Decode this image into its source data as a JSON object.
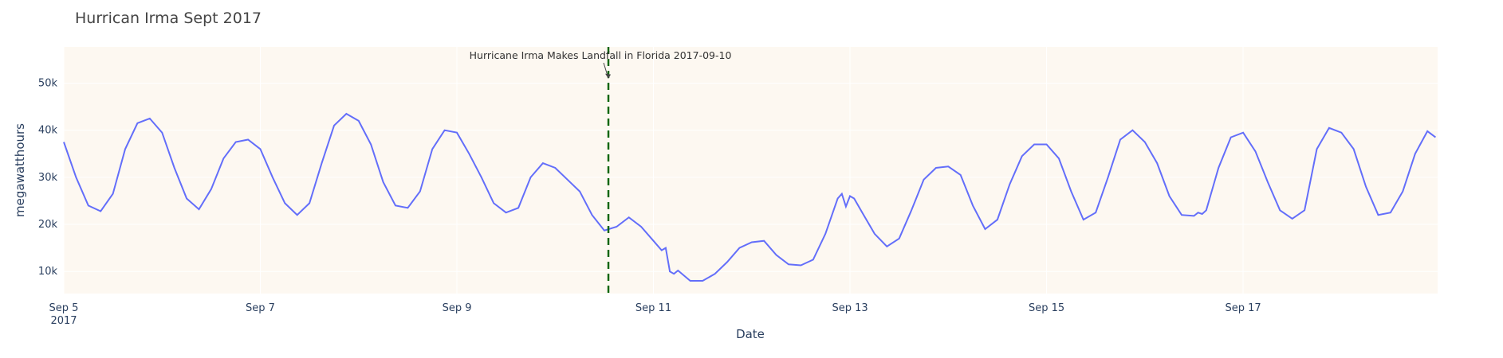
{
  "chart_data": {
    "type": "line",
    "title": "Hurrican Irma Sept 2017",
    "x_label": "Date",
    "y_label": "megawatthours",
    "color": "#636efa",
    "grid": true,
    "x": [
      "2017-09-05T00:00",
      "2017-09-05T03:00",
      "2017-09-05T06:00",
      "2017-09-05T09:00",
      "2017-09-05T12:00",
      "2017-09-05T15:00",
      "2017-09-05T18:00",
      "2017-09-05T21:00",
      "2017-09-06T00:00",
      "2017-09-06T03:00",
      "2017-09-06T06:00",
      "2017-09-06T09:00",
      "2017-09-06T12:00",
      "2017-09-06T15:00",
      "2017-09-06T18:00",
      "2017-09-06T21:00",
      "2017-09-07T00:00",
      "2017-09-07T03:00",
      "2017-09-07T06:00",
      "2017-09-07T09:00",
      "2017-09-07T12:00",
      "2017-09-07T15:00",
      "2017-09-07T18:00",
      "2017-09-07T21:00",
      "2017-09-08T00:00",
      "2017-09-08T03:00",
      "2017-09-08T06:00",
      "2017-09-08T09:00",
      "2017-09-08T12:00",
      "2017-09-08T15:00",
      "2017-09-08T18:00",
      "2017-09-08T21:00",
      "2017-09-09T00:00",
      "2017-09-09T03:00",
      "2017-09-09T06:00",
      "2017-09-09T09:00",
      "2017-09-09T12:00",
      "2017-09-09T15:00",
      "2017-09-09T18:00",
      "2017-09-09T21:00",
      "2017-09-10T00:00",
      "2017-09-10T03:00",
      "2017-09-10T06:00",
      "2017-09-10T09:00",
      "2017-09-10T12:00",
      "2017-09-10T15:00",
      "2017-09-10T18:00",
      "2017-09-10T21:00",
      "2017-09-11T00:00",
      "2017-09-11T02:00",
      "2017-09-11T03:00",
      "2017-09-11T04:00",
      "2017-09-11T05:00",
      "2017-09-11T06:00",
      "2017-09-11T09:00",
      "2017-09-11T12:00",
      "2017-09-11T15:00",
      "2017-09-11T18:00",
      "2017-09-11T21:00",
      "2017-09-12T00:00",
      "2017-09-12T03:00",
      "2017-09-12T06:00",
      "2017-09-12T09:00",
      "2017-09-12T12:00",
      "2017-09-12T15:00",
      "2017-09-12T18:00",
      "2017-09-12T21:00",
      "2017-09-12T22:00",
      "2017-09-12T23:00",
      "2017-09-13T00:00",
      "2017-09-13T01:00",
      "2017-09-13T03:00",
      "2017-09-13T06:00",
      "2017-09-13T09:00",
      "2017-09-13T12:00",
      "2017-09-13T15:00",
      "2017-09-13T18:00",
      "2017-09-13T21:00",
      "2017-09-14T00:00",
      "2017-09-14T03:00",
      "2017-09-14T06:00",
      "2017-09-14T09:00",
      "2017-09-14T12:00",
      "2017-09-14T15:00",
      "2017-09-14T18:00",
      "2017-09-14T21:00",
      "2017-09-15T00:00",
      "2017-09-15T03:00",
      "2017-09-15T06:00",
      "2017-09-15T09:00",
      "2017-09-15T12:00",
      "2017-09-15T15:00",
      "2017-09-15T18:00",
      "2017-09-15T21:00",
      "2017-09-16T00:00",
      "2017-09-16T03:00",
      "2017-09-16T06:00",
      "2017-09-16T09:00",
      "2017-09-16T12:00",
      "2017-09-16T13:00",
      "2017-09-16T14:00",
      "2017-09-16T15:00",
      "2017-09-16T18:00",
      "2017-09-16T21:00",
      "2017-09-17T00:00",
      "2017-09-17T03:00",
      "2017-09-17T06:00",
      "2017-09-17T09:00",
      "2017-09-17T12:00",
      "2017-09-17T15:00",
      "2017-09-17T18:00",
      "2017-09-17T21:00",
      "2017-09-18T00:00",
      "2017-09-18T03:00",
      "2017-09-18T06:00",
      "2017-09-18T09:00",
      "2017-09-18T12:00",
      "2017-09-18T15:00",
      "2017-09-18T18:00",
      "2017-09-18T21:00",
      "2017-09-18T23:00"
    ],
    "values": [
      37500,
      30000,
      24000,
      22800,
      26500,
      36000,
      41500,
      42500,
      39500,
      32000,
      25500,
      23200,
      27500,
      34000,
      37500,
      38000,
      36000,
      30000,
      24500,
      22000,
      24500,
      33000,
      41000,
      43500,
      42000,
      37000,
      29000,
      24000,
      23500,
      27000,
      36000,
      40000,
      39500,
      35000,
      30000,
      24500,
      22500,
      23500,
      30000,
      33000,
      32000,
      29500,
      27000,
      22000,
      18700,
      19500,
      21500,
      19500,
      16500,
      14500,
      15000,
      10000,
      9500,
      10200,
      8000,
      8000,
      9500,
      12000,
      15000,
      16200,
      16500,
      13500,
      11500,
      11300,
      12500,
      18000,
      25500,
      26500,
      23800,
      26000,
      25500,
      22500,
      18000,
      15300,
      17000,
      23000,
      29500,
      32000,
      32300,
      30500,
      24000,
      19000,
      21000,
      28500,
      34500,
      37000,
      37000,
      34000,
      27000,
      21000,
      22500,
      30000,
      38000,
      40000,
      37500,
      33000,
      26000,
      22000,
      21800,
      22500,
      22200,
      23000,
      32000,
      38500,
      39500,
      35500,
      29000,
      23000,
      21200,
      23000,
      36000,
      40500,
      39500,
      36000,
      28000,
      22000,
      22500,
      27000,
      35000,
      39800,
      38500
    ],
    "xlim": [
      "2017-09-05T00:00",
      "2017-09-18T23:30"
    ],
    "ylim": [
      5300,
      57700
    ],
    "xticks": [
      {
        "value": "2017-09-05",
        "label": "Sep 5\n2017"
      },
      {
        "value": "2017-09-07",
        "label": "Sep 7"
      },
      {
        "value": "2017-09-09",
        "label": "Sep 9"
      },
      {
        "value": "2017-09-11",
        "label": "Sep 11"
      },
      {
        "value": "2017-09-13",
        "label": "Sep 13"
      },
      {
        "value": "2017-09-15",
        "label": "Sep 15"
      },
      {
        "value": "2017-09-17",
        "label": "Sep 17"
      }
    ],
    "yticks": [
      {
        "value": 10000,
        "label": "10k"
      },
      {
        "value": 20000,
        "label": "20k"
      },
      {
        "value": 30000,
        "label": "30k"
      },
      {
        "value": 40000,
        "label": "40k"
      },
      {
        "value": 50000,
        "label": "50k"
      }
    ],
    "vline": {
      "x": "2017-09-10T13:00",
      "color": "#006400"
    },
    "annotation": {
      "text": "Hurricane Irma Makes Landfall in Florida 2017-09-10",
      "x": "2017-09-10T13:00",
      "y": 51000
    }
  }
}
